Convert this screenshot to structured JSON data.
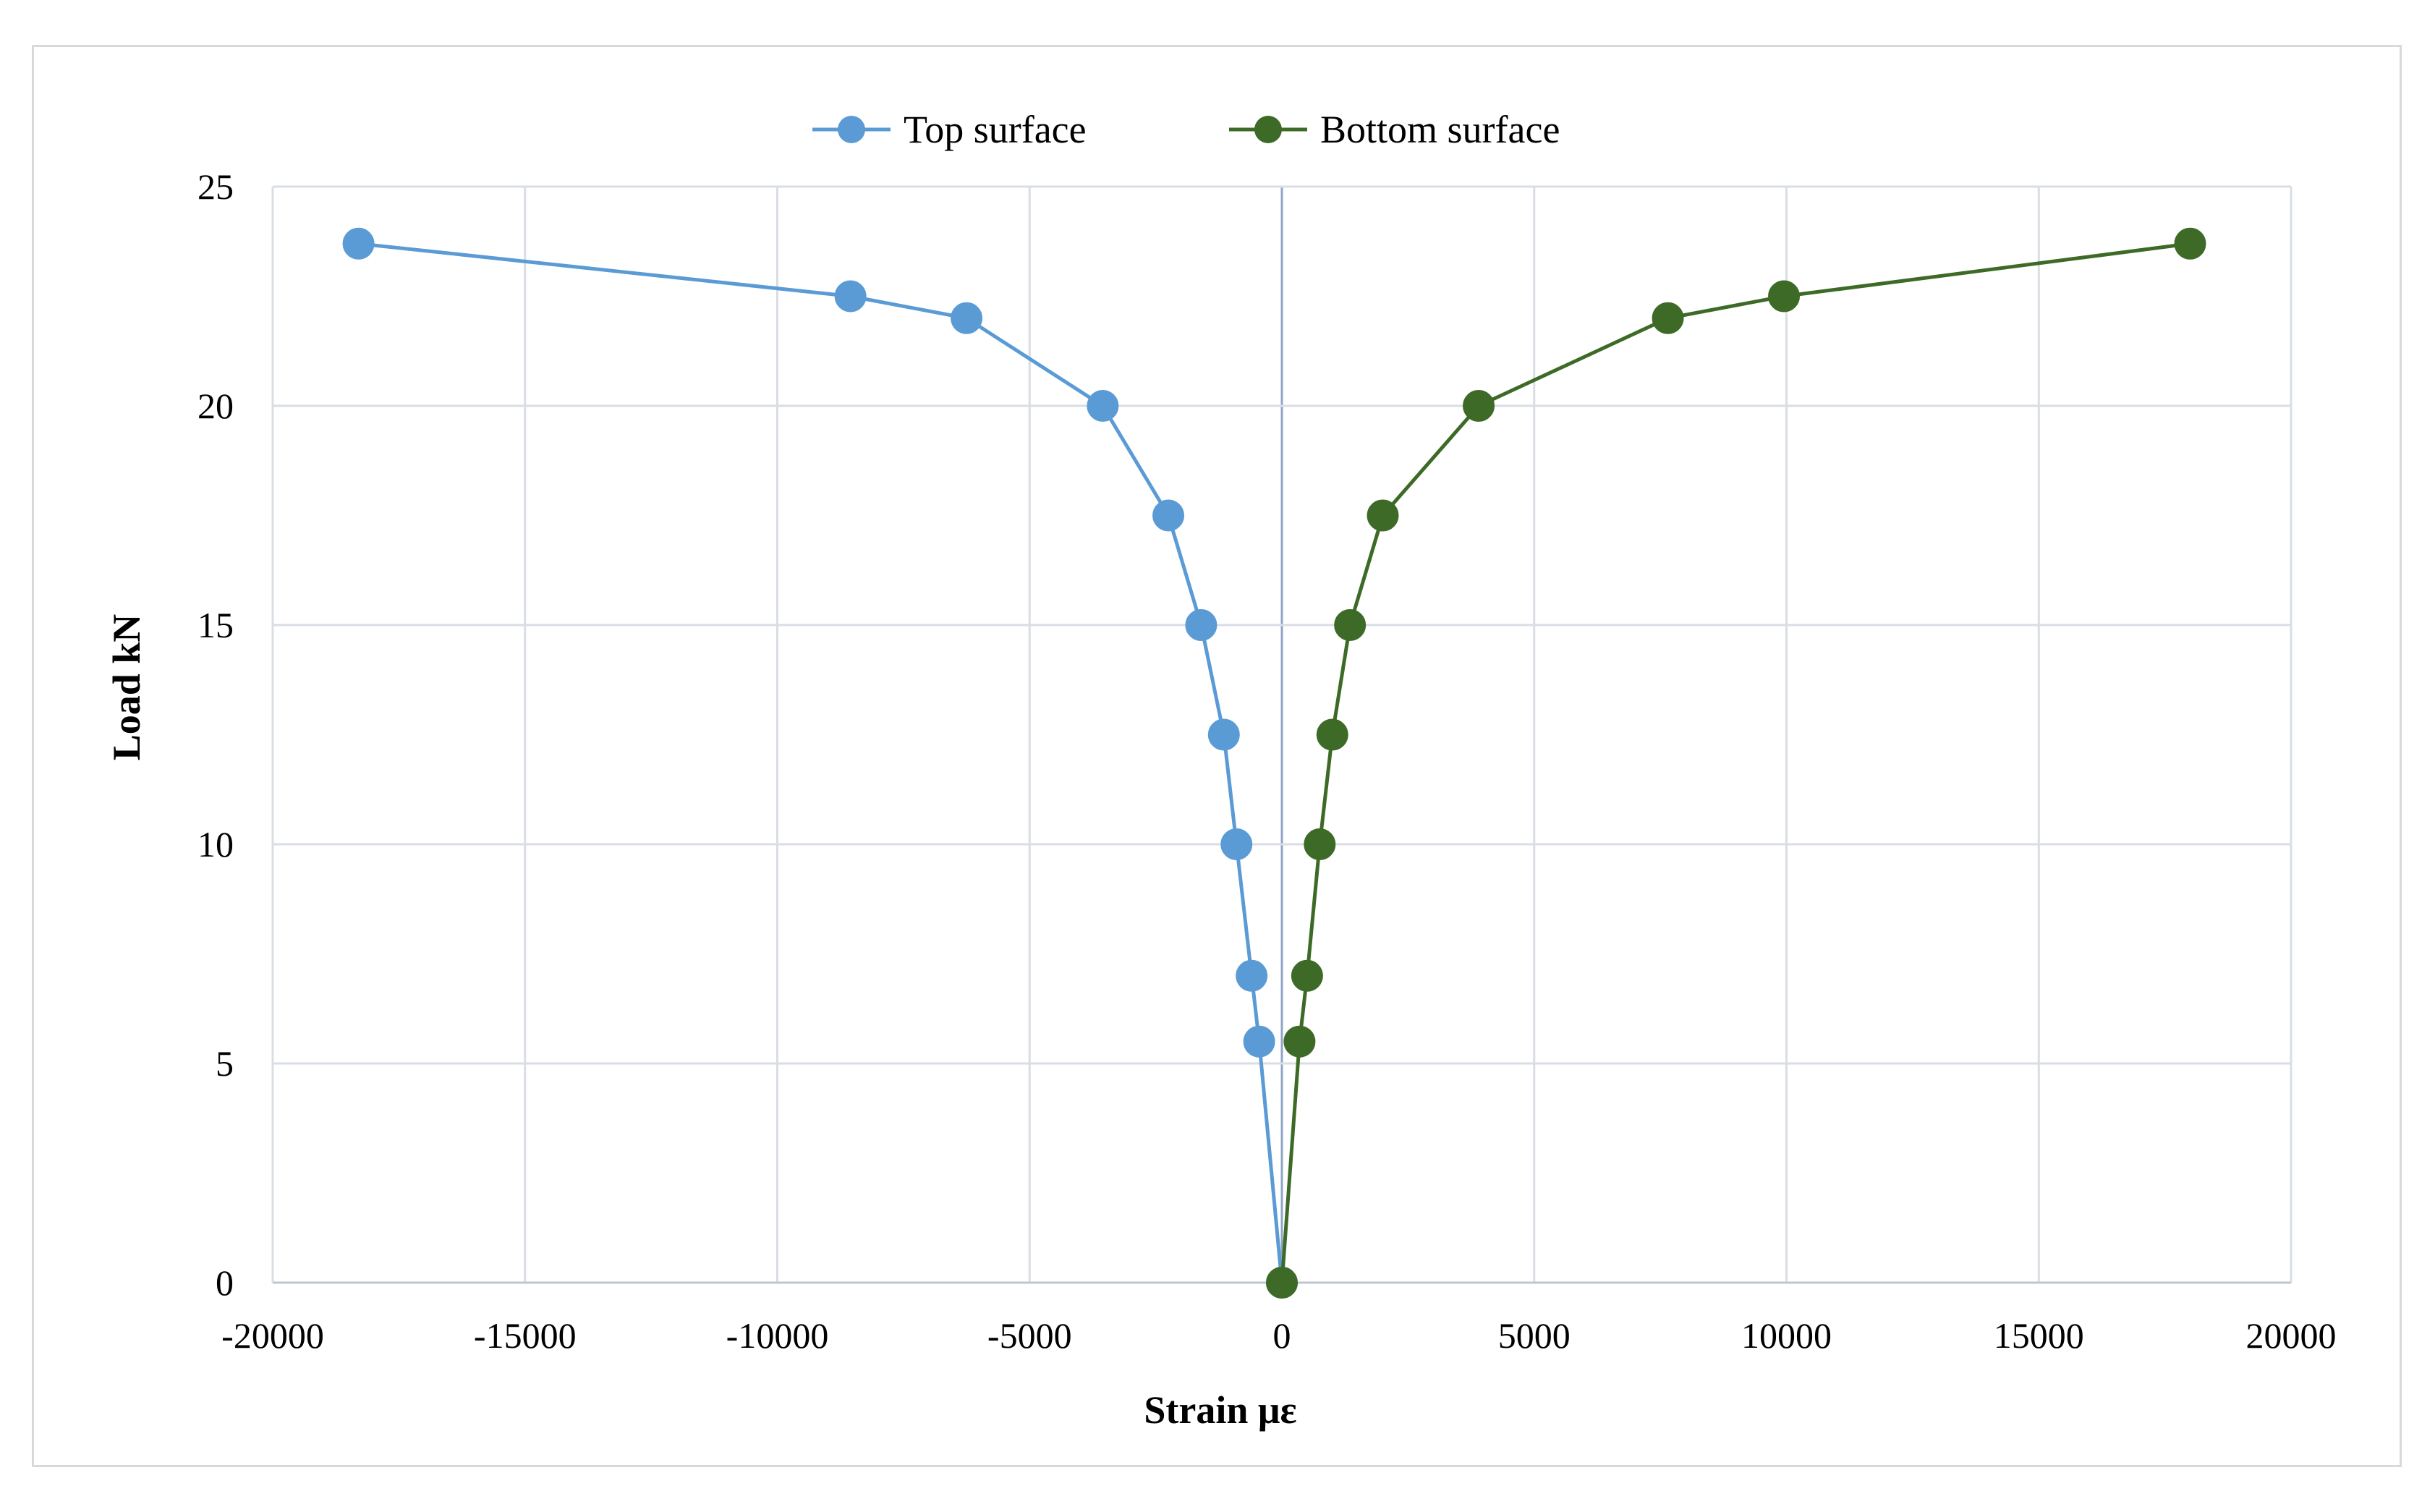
{
  "chart_data": {
    "type": "scatter",
    "xlabel": "Strain με",
    "ylabel": "Load kN",
    "xlim": [
      -20000,
      20000
    ],
    "ylim": [
      0,
      25
    ],
    "xticks": [
      -20000,
      -15000,
      -10000,
      -5000,
      0,
      5000,
      10000,
      15000,
      20000
    ],
    "xtick_labels": [
      "-20000",
      "-15000",
      "-10000",
      "-5000",
      "0",
      "5000",
      "10000",
      "15000",
      "20000"
    ],
    "yticks": [
      0,
      5,
      10,
      15,
      20,
      25
    ],
    "ytick_labels": [
      "0",
      "5",
      "10",
      "15",
      "20",
      "25"
    ],
    "grid": true,
    "legend_position": "top-center",
    "series": [
      {
        "name": "Top surface",
        "color": "#5b9bd5",
        "x": [
          0,
          -450,
          -600,
          -900,
          -1150,
          -1600,
          -2250,
          -3550,
          -6250,
          -8550,
          -18300
        ],
        "y": [
          0,
          5.5,
          7,
          10,
          12.5,
          15,
          17.5,
          20,
          22,
          22.5,
          23.7
        ]
      },
      {
        "name": "Bottom surface",
        "color": "#3d6b27",
        "x": [
          0,
          350,
          500,
          750,
          1000,
          1350,
          2000,
          3900,
          7650,
          9950,
          18000
        ],
        "y": [
          0,
          5.5,
          7,
          10,
          12.5,
          15,
          17.5,
          20,
          22,
          22.5,
          23.7
        ]
      }
    ]
  }
}
